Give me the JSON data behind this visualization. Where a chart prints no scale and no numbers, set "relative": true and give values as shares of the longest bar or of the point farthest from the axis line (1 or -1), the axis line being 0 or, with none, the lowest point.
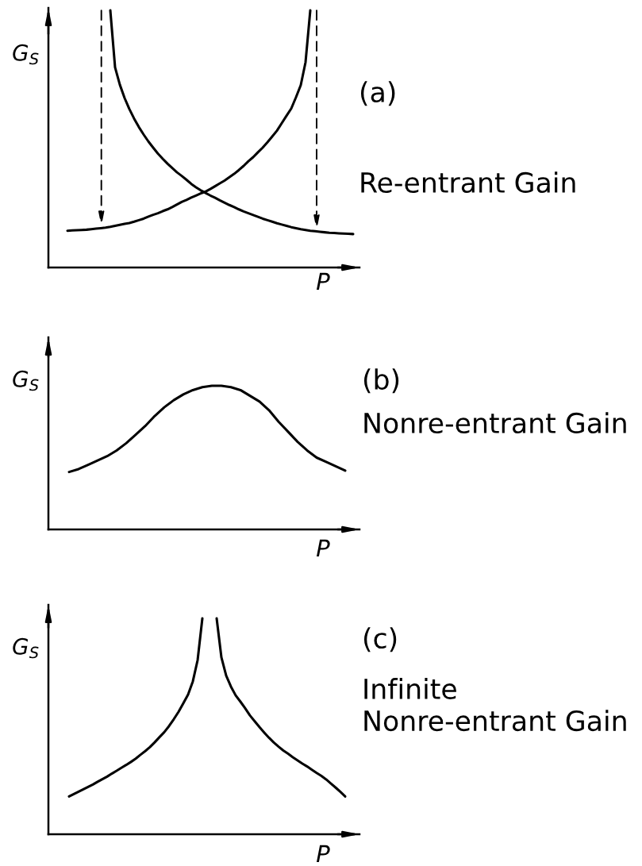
{
  "chart_data": [
    {
      "type": "line",
      "annotations": [
        "(a)",
        "Re-entrant Gain"
      ],
      "xlabel": "P",
      "ylabel": "G$_{S}$",
      "relative": true,
      "tick_labels": false,
      "categories": [
        null,
        null,
        null,
        null,
        null,
        null,
        null,
        null,
        null,
        null,
        null,
        null,
        null,
        null,
        null,
        null,
        null,
        null,
        null,
        null,
        null,
        null,
        null,
        null,
        null,
        null,
        null,
        null,
        null,
        null,
        null,
        null,
        null,
        null,
        null,
        null,
        null,
        null,
        null,
        null,
        null,
        null,
        null,
        null,
        null,
        null,
        null,
        null,
        null,
        null,
        null,
        null,
        null,
        null,
        null,
        null,
        null,
        null,
        null,
        null,
        null
      ],
      "series": [
        {
          "color": "#000000",
          "values": [
            0.143,
            0.144,
            0.145,
            0.146,
            0.147,
            0.149,
            0.151,
            0.153,
            0.155,
            0.158,
            0.162,
            0.166,
            0.17,
            0.173,
            0.178,
            0.184,
            0.19,
            0.198,
            0.205,
            0.211,
            0.219,
            0.226,
            0.235,
            0.245,
            0.255,
            0.263,
            0.272,
            0.28,
            0.288,
            0.295,
            0.305,
            0.316,
            0.327,
            0.338,
            0.351,
            0.364,
            0.379,
            0.395,
            0.413,
            0.429,
            0.448,
            0.466,
            0.487,
            0.509,
            0.532,
            0.561,
            0.59,
            0.618,
            0.662,
            0.709,
            0.798,
            1,
            null,
            null,
            null,
            null,
            null,
            null,
            null,
            null,
            null
          ]
        },
        {
          "color": "#000000",
          "values": [
            null,
            null,
            null,
            null,
            null,
            null,
            null,
            null,
            null,
            1,
            0.778,
            0.711,
            0.659,
            0.616,
            0.579,
            0.546,
            0.517,
            0.49,
            0.466,
            0.443,
            0.423,
            0.404,
            0.387,
            0.37,
            0.356,
            0.341,
            0.325,
            0.312,
            0.3,
            0.29,
            0.28,
            0.271,
            0.261,
            0.252,
            0.243,
            0.235,
            0.226,
            0.218,
            0.211,
            0.204,
            0.197,
            0.19,
            0.184,
            0.178,
            0.172,
            0.167,
            0.162,
            0.157,
            0.153,
            0.149,
            0.146,
            0.143,
            0.141,
            0.139,
            0.137,
            0.135,
            0.134,
            0.133,
            0.132,
            0.131,
            0.13
          ]
        }
      ]
    },
    {
      "type": "line",
      "annotations": [
        "(b)",
        "Nonre-entrant Gain"
      ],
      "xlabel": "P",
      "ylabel": "G$_{S}$",
      "relative": true,
      "tick_labels": false,
      "categories": [
        null,
        null,
        null,
        null,
        null,
        null,
        null,
        null,
        null,
        null,
        null,
        null,
        null,
        null,
        null,
        null,
        null,
        null,
        null,
        null,
        null,
        null,
        null,
        null,
        null,
        null,
        null,
        null,
        null,
        null
      ],
      "series": [
        {
          "color": "#000000",
          "values": [
            0.4,
            0.42,
            0.45,
            0.48,
            0.51,
            0.55,
            0.6,
            0.66,
            0.72,
            0.79,
            0.85,
            0.9,
            0.94,
            0.97,
            0.99,
            1,
            1,
            0.99,
            0.97,
            0.93,
            0.89,
            0.83,
            0.75,
            0.68,
            0.61,
            0.55,
            0.5,
            0.47,
            0.44,
            0.41
          ]
        }
      ]
    },
    {
      "type": "line",
      "annotations": [
        "(c)",
        "Infinite\nNonre-entrant Gain"
      ],
      "xlabel": "P",
      "ylabel": "G$_{S}$",
      "relative": true,
      "tick_labels": false,
      "categories": [
        null,
        null,
        null,
        null,
        null,
        null,
        null,
        null,
        null,
        null,
        null,
        null,
        null,
        null,
        null,
        null,
        null,
        null,
        null,
        null,
        null,
        null,
        null,
        null,
        null,
        null,
        null,
        null,
        null,
        null,
        null,
        null,
        null,
        null,
        null,
        null,
        null,
        null,
        null,
        null,
        null,
        null,
        null,
        null,
        null,
        null,
        null,
        null,
        null,
        null,
        null,
        null,
        null,
        null,
        null,
        null,
        null,
        null,
        null
      ],
      "series": [
        {
          "color": "#000000",
          "values": [
            0.175,
            0.186,
            0.197,
            0.208,
            0.219,
            0.23,
            0.243,
            0.255,
            0.267,
            0.281,
            0.294,
            0.308,
            0.321,
            0.335,
            0.35,
            0.368,
            0.385,
            0.404,
            0.426,
            0.45,
            0.473,
            0.501,
            0.533,
            0.567,
            0.607,
            0.647,
            0.708,
            0.806,
            1,
            null,
            null,
            null,
            null,
            null,
            null,
            null,
            null,
            null,
            null,
            null,
            null,
            null,
            null,
            null,
            null,
            null,
            null,
            null,
            null,
            null,
            null,
            null,
            null,
            null,
            null,
            null,
            null,
            null,
            null
          ]
        },
        {
          "color": "#000000",
          "values": [
            null,
            null,
            null,
            null,
            null,
            null,
            null,
            null,
            null,
            null,
            null,
            null,
            null,
            null,
            null,
            null,
            null,
            null,
            null,
            null,
            null,
            null,
            null,
            null,
            null,
            null,
            null,
            null,
            null,
            null,
            null,
            1,
            0.819,
            0.735,
            0.684,
            0.643,
            0.614,
            0.583,
            0.55,
            0.523,
            0.496,
            0.471,
            0.447,
            0.425,
            0.406,
            0.388,
            0.373,
            0.357,
            0.342,
            0.327,
            0.314,
            0.299,
            0.284,
            0.27,
            0.254,
            0.235,
            0.216,
            0.196,
            0.175
          ]
        }
      ]
    }
  ]
}
